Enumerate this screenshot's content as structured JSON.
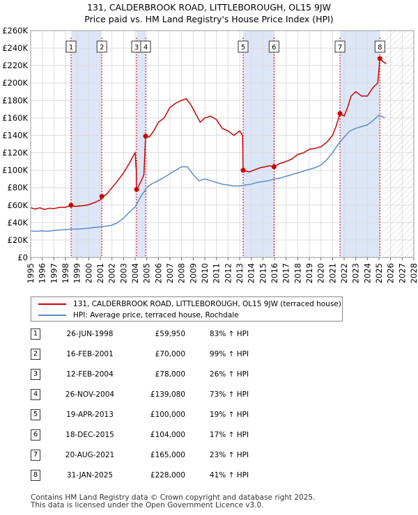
{
  "chart_data": {
    "type": "line",
    "title": "131, CALDERBROOK ROAD, LITTLEBOROUGH, OL15 9JW",
    "subtitle": "Price paid vs. HM Land Registry's House Price Index (HPI)",
    "xlabel": "",
    "ylabel": "",
    "xlim": [
      1995,
      2028
    ],
    "ylim": [
      0,
      260000
    ],
    "x_ticks": [
      "1995",
      "1996",
      "1997",
      "1998",
      "1999",
      "2000",
      "2001",
      "2002",
      "2003",
      "2004",
      "2005",
      "2006",
      "2007",
      "2008",
      "2009",
      "2010",
      "2011",
      "2012",
      "2013",
      "2014",
      "2015",
      "2016",
      "2017",
      "2018",
      "2019",
      "2020",
      "2021",
      "2022",
      "2023",
      "2024",
      "2025",
      "2026",
      "2027",
      "2028"
    ],
    "y_ticks": [
      {
        "value": 0,
        "label": "£0"
      },
      {
        "value": 20000,
        "label": "£20K"
      },
      {
        "value": 40000,
        "label": "£40K"
      },
      {
        "value": 60000,
        "label": "£60K"
      },
      {
        "value": 80000,
        "label": "£80K"
      },
      {
        "value": 100000,
        "label": "£100K"
      },
      {
        "value": 120000,
        "label": "£120K"
      },
      {
        "value": 140000,
        "label": "£140K"
      },
      {
        "value": 160000,
        "label": "£160K"
      },
      {
        "value": 180000,
        "label": "£180K"
      },
      {
        "value": 200000,
        "label": "£200K"
      },
      {
        "value": 220000,
        "label": "£220K"
      },
      {
        "value": 240000,
        "label": "£240K"
      },
      {
        "value": 260000,
        "label": "£260K"
      }
    ],
    "grid": true,
    "forecast_from": 2025.5,
    "shaded_periods": [
      [
        1998.49,
        2001.13
      ],
      [
        2004.12,
        2004.9
      ],
      [
        2013.3,
        2015.96
      ],
      [
        2021.64,
        2025.08
      ]
    ],
    "series": [
      {
        "name": "131, CALDERBROOK ROAD, LITTLEBOROUGH, OL15 9JW (terraced house)",
        "color": "#cc0000",
        "points": [
          [
            1995.0,
            57000
          ],
          [
            1995.4,
            55500
          ],
          [
            1995.8,
            57000
          ],
          [
            1996.2,
            55000
          ],
          [
            1996.6,
            56500
          ],
          [
            1997.0,
            56000
          ],
          [
            1997.5,
            57500
          ],
          [
            1998.0,
            57500
          ],
          [
            1998.48,
            59950
          ],
          [
            1998.8,
            58500
          ],
          [
            1999.2,
            59000
          ],
          [
            1999.6,
            59500
          ],
          [
            2000.0,
            60500
          ],
          [
            2000.5,
            63000
          ],
          [
            2001.0,
            66000
          ],
          [
            2001.13,
            70000
          ],
          [
            2001.5,
            72000
          ],
          [
            2002.0,
            80000
          ],
          [
            2002.5,
            88000
          ],
          [
            2003.0,
            97000
          ],
          [
            2003.5,
            108000
          ],
          [
            2003.9,
            118000
          ],
          [
            2004.0,
            120000
          ],
          [
            2004.1,
            100000
          ],
          [
            2004.12,
            78000
          ],
          [
            2004.3,
            82000
          ],
          [
            2004.6,
            90000
          ],
          [
            2004.75,
            95000
          ],
          [
            2004.9,
            139080
          ],
          [
            2005.2,
            138000
          ],
          [
            2005.6,
            145000
          ],
          [
            2006.0,
            155000
          ],
          [
            2006.5,
            160000
          ],
          [
            2007.0,
            172000
          ],
          [
            2007.5,
            177000
          ],
          [
            2008.0,
            180000
          ],
          [
            2008.4,
            182000
          ],
          [
            2008.8,
            175000
          ],
          [
            2009.2,
            165000
          ],
          [
            2009.6,
            155000
          ],
          [
            2010.0,
            160000
          ],
          [
            2010.5,
            162000
          ],
          [
            2011.0,
            158000
          ],
          [
            2011.5,
            148000
          ],
          [
            2012.0,
            145000
          ],
          [
            2012.5,
            140000
          ],
          [
            2013.0,
            145000
          ],
          [
            2013.25,
            140000
          ],
          [
            2013.3,
            100000
          ],
          [
            2013.8,
            98000
          ],
          [
            2014.2,
            100000
          ],
          [
            2014.8,
            103000
          ],
          [
            2015.2,
            104000
          ],
          [
            2015.6,
            105000
          ],
          [
            2015.96,
            104000
          ],
          [
            2016.5,
            108000
          ],
          [
            2017.0,
            110000
          ],
          [
            2017.5,
            113000
          ],
          [
            2018.0,
            118000
          ],
          [
            2018.5,
            120000
          ],
          [
            2019.0,
            124000
          ],
          [
            2019.5,
            125000
          ],
          [
            2020.0,
            127000
          ],
          [
            2020.5,
            132000
          ],
          [
            2021.0,
            140000
          ],
          [
            2021.3,
            150000
          ],
          [
            2021.64,
            165000
          ],
          [
            2022.0,
            162000
          ],
          [
            2022.3,
            172000
          ],
          [
            2022.6,
            185000
          ],
          [
            2023.0,
            190000
          ],
          [
            2023.5,
            185000
          ],
          [
            2024.0,
            185000
          ],
          [
            2024.5,
            195000
          ],
          [
            2024.9,
            200000
          ],
          [
            2025.08,
            228000
          ],
          [
            2025.3,
            225000
          ],
          [
            2025.6,
            222000
          ]
        ]
      },
      {
        "name": "HPI: Average price, terraced house, Rochdale",
        "color": "#5b8dc9",
        "points": [
          [
            1995.0,
            30500
          ],
          [
            1995.5,
            30000
          ],
          [
            1996.0,
            30500
          ],
          [
            1996.5,
            30000
          ],
          [
            1997.0,
            31000
          ],
          [
            1997.5,
            31500
          ],
          [
            1998.0,
            32000
          ],
          [
            1998.5,
            32500
          ],
          [
            1999.0,
            32500
          ],
          [
            1999.5,
            33000
          ],
          [
            2000.0,
            33500
          ],
          [
            2000.5,
            34500
          ],
          [
            2001.0,
            35000
          ],
          [
            2001.5,
            36000
          ],
          [
            2002.0,
            37000
          ],
          [
            2002.5,
            40000
          ],
          [
            2003.0,
            45000
          ],
          [
            2003.5,
            52000
          ],
          [
            2004.0,
            58000
          ],
          [
            2004.5,
            70000
          ],
          [
            2005.0,
            80000
          ],
          [
            2005.5,
            85000
          ],
          [
            2006.0,
            88000
          ],
          [
            2006.5,
            92000
          ],
          [
            2007.0,
            96000
          ],
          [
            2007.5,
            100000
          ],
          [
            2008.0,
            104000
          ],
          [
            2008.5,
            104000
          ],
          [
            2009.0,
            95000
          ],
          [
            2009.5,
            88000
          ],
          [
            2010.0,
            90000
          ],
          [
            2010.5,
            88000
          ],
          [
            2011.0,
            86000
          ],
          [
            2011.5,
            84000
          ],
          [
            2012.0,
            83000
          ],
          [
            2012.5,
            82000
          ],
          [
            2013.0,
            82000
          ],
          [
            2013.5,
            83000
          ],
          [
            2014.0,
            84000
          ],
          [
            2014.5,
            86000
          ],
          [
            2015.0,
            87000
          ],
          [
            2015.5,
            88000
          ],
          [
            2016.0,
            90000
          ],
          [
            2016.5,
            91000
          ],
          [
            2017.0,
            93000
          ],
          [
            2017.5,
            95000
          ],
          [
            2018.0,
            97000
          ],
          [
            2018.5,
            99000
          ],
          [
            2019.0,
            101000
          ],
          [
            2019.5,
            103000
          ],
          [
            2020.0,
            106000
          ],
          [
            2020.5,
            112000
          ],
          [
            2021.0,
            120000
          ],
          [
            2021.5,
            130000
          ],
          [
            2022.0,
            138000
          ],
          [
            2022.5,
            145000
          ],
          [
            2023.0,
            148000
          ],
          [
            2023.5,
            150000
          ],
          [
            2024.0,
            152000
          ],
          [
            2024.5,
            157000
          ],
          [
            2025.0,
            163000
          ],
          [
            2025.5,
            160000
          ]
        ]
      }
    ],
    "markers": [
      {
        "label": "1",
        "x": 1998.48,
        "y": 59950
      },
      {
        "label": "2",
        "x": 2001.13,
        "y": 70000
      },
      {
        "label": "3",
        "x": 2004.12,
        "y": 78000
      },
      {
        "label": "4",
        "x": 2004.9,
        "y": 139080
      },
      {
        "label": "5",
        "x": 2013.3,
        "y": 100000
      },
      {
        "label": "6",
        "x": 2015.96,
        "y": 104000
      },
      {
        "label": "7",
        "x": 2021.64,
        "y": 165000
      },
      {
        "label": "8",
        "x": 2025.08,
        "y": 228000
      }
    ]
  },
  "legend": {
    "property_label": "131, CALDERBROOK ROAD, LITTLEBOROUGH, OL15 9JW (terraced house)",
    "hpi_label": "HPI: Average price, terraced house, Rochdale",
    "property_color": "#cc0000",
    "hpi_color": "#5b8dc9"
  },
  "sales": [
    {
      "num": "1",
      "date": "26-JUN-1998",
      "price": "£59,950",
      "hpi": "83% ↑ HPI"
    },
    {
      "num": "2",
      "date": "16-FEB-2001",
      "price": "£70,000",
      "hpi": "99% ↑ HPI"
    },
    {
      "num": "3",
      "date": "12-FEB-2004",
      "price": "£78,000",
      "hpi": "26% ↑ HPI"
    },
    {
      "num": "4",
      "date": "26-NOV-2004",
      "price": "£139,080",
      "hpi": "73% ↑ HPI"
    },
    {
      "num": "5",
      "date": "19-APR-2013",
      "price": "£100,000",
      "hpi": "19% ↑ HPI"
    },
    {
      "num": "6",
      "date": "18-DEC-2015",
      "price": "£104,000",
      "hpi": "17% ↑ HPI"
    },
    {
      "num": "7",
      "date": "20-AUG-2021",
      "price": "£165,000",
      "hpi": "23% ↑ HPI"
    },
    {
      "num": "8",
      "date": "31-JAN-2025",
      "price": "£228,000",
      "hpi": "41% ↑ HPI"
    }
  ],
  "footer": {
    "line1": "Contains HM Land Registry data © Crown copyright and database right 2025.",
    "line2": "This data is licensed under the Open Government Licence v3.0."
  }
}
